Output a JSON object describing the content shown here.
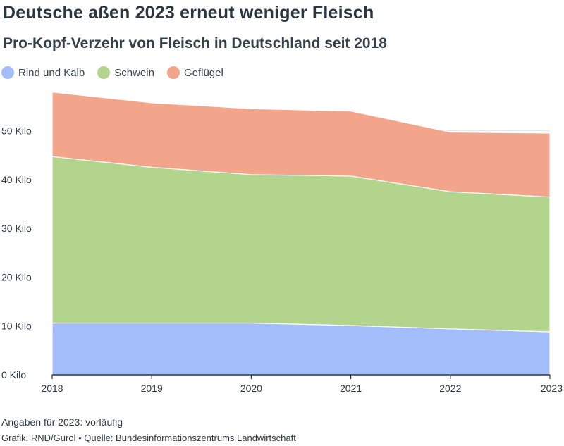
{
  "header": {
    "title": "Deutsche aßen 2023 erneut weniger Fleisch",
    "subtitle": "Pro-Kopf-Verzehr von Fleisch in Deutschland seit 2018"
  },
  "legend": [
    {
      "label": "Rind und Kalb",
      "color": "#a3bcfa"
    },
    {
      "label": "Schwein",
      "color": "#b2d48c"
    },
    {
      "label": "Geflügel",
      "color": "#f2a58a"
    }
  ],
  "chart_data": {
    "type": "area",
    "stacked": true,
    "x": [
      "2018",
      "2019",
      "2020",
      "2021",
      "2022",
      "2023"
    ],
    "series": [
      {
        "name": "Rind und Kalb",
        "color": "#a3bcfa",
        "values": [
          10.6,
          10.6,
          10.6,
          10.1,
          9.4,
          8.8
        ]
      },
      {
        "name": "Schwein",
        "color": "#b2d48c",
        "values": [
          34.1,
          31.9,
          30.4,
          30.6,
          28.1,
          27.6
        ]
      },
      {
        "name": "Geflügel",
        "color": "#f2a58a",
        "values": [
          13.2,
          13.2,
          13.5,
          13.3,
          12.2,
          13.1
        ]
      }
    ],
    "y_ticks": [
      0,
      10,
      20,
      30,
      40,
      50
    ],
    "y_tick_labels": [
      "0 Kilo",
      "10 Kilo",
      "20 Kilo",
      "30 Kilo",
      "40 Kilo",
      "50 Kilo"
    ],
    "ylim": [
      0,
      58
    ],
    "grid": true,
    "legend_position": "top-left"
  },
  "footer": {
    "note": "Angaben für 2023: vorläufig",
    "source": "Grafik: RND/Gurol • Quelle: Bundesinformationszentrums Landwirtschaft"
  }
}
